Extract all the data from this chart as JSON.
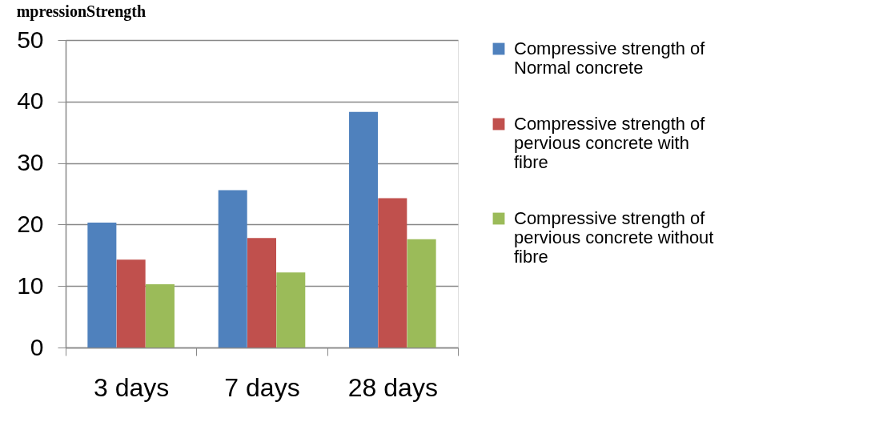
{
  "chart_data": {
    "type": "bar",
    "title": "mpressionStrength",
    "categories": [
      "3 days",
      "7 days",
      "28 days"
    ],
    "series": [
      {
        "name": "Compressive strength of Normal concrete",
        "color": "#4f81bd",
        "values": [
          20.3,
          25.6,
          38.3
        ]
      },
      {
        "name": "Compressive strength of pervious concrete with fibre",
        "color": "#c0504d",
        "values": [
          14.3,
          17.8,
          24.3
        ]
      },
      {
        "name": "Compressive strength of pervious concrete without fibre",
        "color": "#9bbb59",
        "values": [
          10.3,
          12.2,
          17.6
        ]
      }
    ],
    "ylim": [
      0,
      50
    ],
    "yticks": [
      0,
      10,
      20,
      30,
      40,
      50
    ],
    "grid": "y",
    "legend": "right"
  }
}
